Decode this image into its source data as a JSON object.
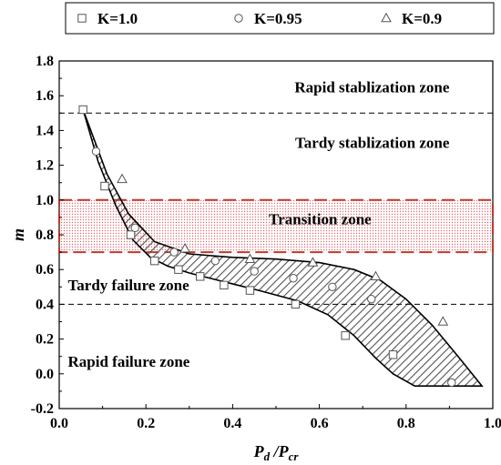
{
  "chart_data": {
    "type": "scatter",
    "title": "",
    "xlabel": {
      "base": "P",
      "sub1": "d",
      "sep": " /",
      "base2": "P",
      "sub2": "cr"
    },
    "ylabel": "m",
    "xlim": [
      0.0,
      1.0
    ],
    "ylim": [
      -0.2,
      1.8
    ],
    "xticks": [
      0.0,
      0.2,
      0.4,
      0.6,
      0.8,
      1.0
    ],
    "xtick_labels": [
      "0.0",
      "0.2",
      "0.4",
      "0.6",
      "0.8",
      "1.0"
    ],
    "yticks": [
      -0.2,
      0.0,
      0.2,
      0.4,
      0.6,
      0.8,
      1.0,
      1.2,
      1.4,
      1.6,
      1.8
    ],
    "ytick_labels": [
      "-0.2",
      "0.0",
      "0.2",
      "0.4",
      "0.6",
      "0.8",
      "1.0",
      "1.2",
      "1.4",
      "1.6",
      "1.8"
    ],
    "grid": false,
    "legend_position": "top",
    "series": [
      {
        "name": "K=1.0",
        "marker": "square",
        "points": [
          [
            0.055,
            1.52
          ],
          [
            0.105,
            1.08
          ],
          [
            0.165,
            0.8
          ],
          [
            0.22,
            0.65
          ],
          [
            0.275,
            0.6
          ],
          [
            0.325,
            0.56
          ],
          [
            0.38,
            0.51
          ],
          [
            0.44,
            0.48
          ],
          [
            0.545,
            0.4
          ],
          [
            0.66,
            0.22
          ],
          [
            0.77,
            0.11
          ]
        ]
      },
      {
        "name": "K=0.95",
        "marker": "circle",
        "points": [
          [
            0.085,
            1.28
          ],
          [
            0.175,
            0.84
          ],
          [
            0.265,
            0.7
          ],
          [
            0.36,
            0.65
          ],
          [
            0.45,
            0.59
          ],
          [
            0.54,
            0.55
          ],
          [
            0.63,
            0.5
          ],
          [
            0.72,
            0.43
          ],
          [
            0.905,
            -0.05
          ]
        ]
      },
      {
        "name": "K=0.9",
        "marker": "triangle",
        "points": [
          [
            0.145,
            1.12
          ],
          [
            0.29,
            0.72
          ],
          [
            0.44,
            0.66
          ],
          [
            0.585,
            0.64
          ],
          [
            0.73,
            0.56
          ],
          [
            0.885,
            0.3
          ]
        ]
      }
    ],
    "thresholds": [
      1.5,
      0.4
    ],
    "transition_band": [
      0.7,
      1.0
    ],
    "band_upper": [
      [
        0.055,
        1.52
      ],
      [
        0.11,
        1.15
      ],
      [
        0.16,
        0.92
      ],
      [
        0.22,
        0.76
      ],
      [
        0.3,
        0.69
      ],
      [
        0.4,
        0.67
      ],
      [
        0.5,
        0.66
      ],
      [
        0.6,
        0.64
      ],
      [
        0.68,
        0.6
      ],
      [
        0.74,
        0.54
      ],
      [
        0.8,
        0.43
      ],
      [
        0.86,
        0.28
      ],
      [
        0.92,
        0.1
      ],
      [
        0.975,
        -0.07
      ]
    ],
    "band_lower": [
      [
        0.055,
        1.52
      ],
      [
        0.09,
        1.22
      ],
      [
        0.13,
        0.97
      ],
      [
        0.17,
        0.77
      ],
      [
        0.21,
        0.67
      ],
      [
        0.25,
        0.62
      ],
      [
        0.3,
        0.58
      ],
      [
        0.38,
        0.53
      ],
      [
        0.46,
        0.48
      ],
      [
        0.55,
        0.42
      ],
      [
        0.62,
        0.34
      ],
      [
        0.68,
        0.22
      ],
      [
        0.73,
        0.09
      ],
      [
        0.77,
        0.0
      ],
      [
        0.82,
        -0.07
      ]
    ],
    "zone_labels": [
      {
        "text": "Rapid stablization zone",
        "x": 0.9,
        "y": 1.62,
        "anchor": "end"
      },
      {
        "text": "Tardy stablization zone",
        "x": 0.9,
        "y": 1.3,
        "anchor": "end"
      },
      {
        "text": "Transition zone",
        "x": 0.72,
        "y": 0.86,
        "anchor": "end"
      },
      {
        "text": "Tardy failure zone",
        "x": 0.02,
        "y": 0.48,
        "anchor": "start"
      },
      {
        "text": "Rapid failure zone",
        "x": 0.02,
        "y": 0.04,
        "anchor": "start"
      }
    ],
    "colors": {
      "band_fill": "#f4c6c9",
      "band_border": "#c0392b",
      "hatch": "#555555"
    }
  }
}
